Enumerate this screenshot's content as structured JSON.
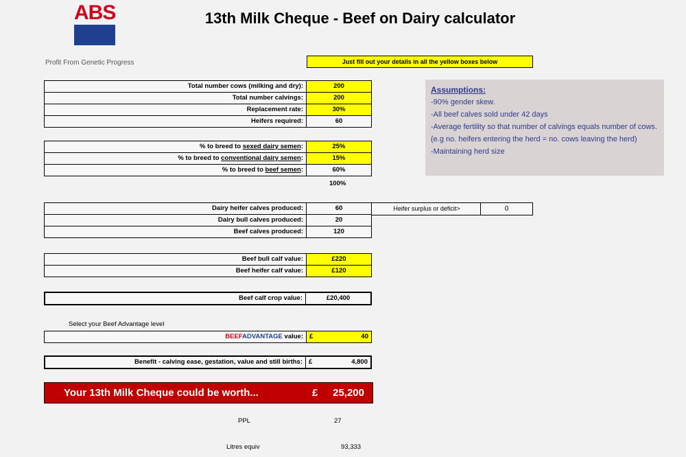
{
  "logo": {
    "text": "ABS",
    "colors": {
      "red": "#d0021b",
      "blue": "#1f3f8f"
    }
  },
  "title": "13th Milk Cheque - Beef on Dairy calculator",
  "tagline": "Profit From Genetic Progress",
  "instruction": "Just fill out your details in all the yellow boxes below",
  "herd": [
    {
      "label": "Total number cows (milking and dry):",
      "value": "200",
      "input": true
    },
    {
      "label": "Total number calvings:",
      "value": "200",
      "input": true
    },
    {
      "label": "Replacement rate:",
      "value": "30%",
      "input": true
    },
    {
      "label": "Heifers required:",
      "value": "60",
      "input": false
    }
  ],
  "breeding": [
    {
      "label_prefix": "% to breed to ",
      "label_u": "sexed dairy semen",
      "label_suffix": ":",
      "value": "25%",
      "input": true
    },
    {
      "label_prefix": "% to breed to ",
      "label_u": "conventional dairy semen",
      "label_suffix": ":",
      "value": "15%",
      "input": true
    },
    {
      "label_prefix": "% to breed to ",
      "label_u": "beef semen",
      "label_suffix": ":",
      "value": "60%",
      "input": false
    }
  ],
  "breeding_total": "100%",
  "assumptions": {
    "heading": "Assumptions:",
    "lines": [
      "-90% gender skew.",
      "-All beef calves sold under 42 days",
      "-Average fertility so that number of calvings equals number of cows. (e.g no. heifers entering the herd = no. cows leaving the herd)",
      "-Maintaining herd size"
    ]
  },
  "calves": [
    {
      "label": "Dairy heifer calves produced:",
      "value": "60"
    },
    {
      "label": "Dairy bull calves produced:",
      "value": "20"
    },
    {
      "label": "Beef calves produced:",
      "value": "120"
    }
  ],
  "surplus": {
    "label": "Heifer surplus or deficit>",
    "value": "0"
  },
  "calf_values": [
    {
      "label": "Beef bull calf value:",
      "value": "£220"
    },
    {
      "label": "Beef heifer calf value:",
      "value": "£120"
    }
  ],
  "crop": {
    "label": "Beef calf crop value:",
    "value": "£20,400"
  },
  "beef_select_label": "Select your Beef Advantage level",
  "beef_adv": {
    "red": "BEEF",
    "blue": "ADVANTAGE",
    "suffix": " value:",
    "currency": "£",
    "value": "40"
  },
  "benefit": {
    "label": "Benefit - calving ease, gestation, value and still births:",
    "currency": "£",
    "value": "4,800"
  },
  "worth": {
    "label": "Your 13th Milk Cheque could be worth...",
    "currency": "£",
    "value": "25,200"
  },
  "ppl": {
    "label": "PPL",
    "value": "27"
  },
  "litres": {
    "label": "Litres equiv",
    "value": "93,333"
  }
}
